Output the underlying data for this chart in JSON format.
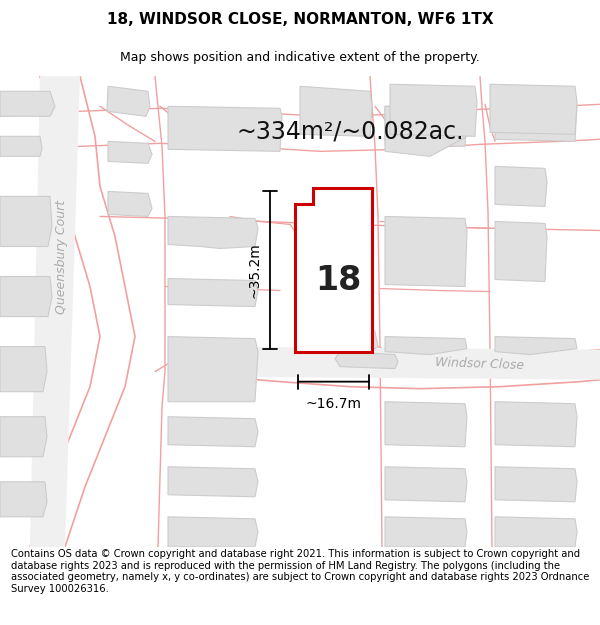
{
  "title": "18, WINDSOR CLOSE, NORMANTON, WF6 1TX",
  "subtitle": "Map shows position and indicative extent of the property.",
  "area_label": "~334m²/~0.082ac.",
  "property_number": "18",
  "width_label": "~16.7m",
  "height_label": "~35.2m",
  "street_label_left": "Queensbury Court",
  "street_label_right": "Windsor Close",
  "footer_text": "Contains OS data © Crown copyright and database right 2021. This information is subject to Crown copyright and database rights 2023 and is reproduced with the permission of HM Land Registry. The polygons (including the associated geometry, namely x, y co-ordinates) are subject to Crown copyright and database rights 2023 Ordnance Survey 100026316.",
  "map_bg": "#f5f5f5",
  "plot_fill": "#ffffff",
  "plot_edge": "#cc0000",
  "road_color": "#f0a0a0",
  "road_fill": "#f5f5f5",
  "building_fill": "#e0e0e0",
  "building_edge": "#cccccc",
  "title_fontsize": 11,
  "subtitle_fontsize": 9,
  "area_fontsize": 17,
  "property_number_fontsize": 22,
  "dim_label_fontsize": 10,
  "street_label_fontsize": 9,
  "footer_fontsize": 7.2
}
